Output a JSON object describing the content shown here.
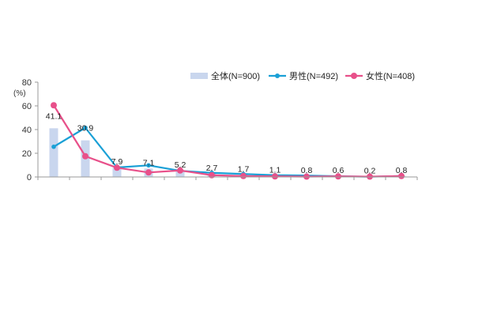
{
  "chart_data": {
    "type": "bar",
    "categories": [
      "",
      "",
      "",
      "",
      "",
      "",
      "",
      "",
      "",
      "",
      "",
      ""
    ],
    "series": [
      {
        "name": "全体(N=900)",
        "type": "bar",
        "color": "#c9d6ee",
        "values": [
          41.1,
          30.9,
          7.9,
          7.1,
          5.2,
          2.7,
          1.7,
          1.1,
          0.8,
          0.6,
          0.2,
          0.8
        ]
      },
      {
        "name": "男性(N=492)",
        "type": "line",
        "color": "#1aa0d6",
        "values": [
          25.5,
          41.5,
          8.0,
          9.8,
          5.2,
          3.5,
          2.5,
          1.5,
          1.2,
          0.6,
          0.2,
          0.8
        ]
      },
      {
        "name": "女性(N=408)",
        "type": "line",
        "color": "#e8508a",
        "values": [
          60.5,
          17.5,
          7.8,
          3.8,
          5.5,
          1.5,
          0.8,
          0.5,
          0.3,
          0.5,
          0.3,
          0.8
        ]
      }
    ],
    "data_labels": [
      "41.1",
      "30.9",
      "7.9",
      "7.1",
      "5.2",
      "2.7",
      "1.7",
      "1.1",
      "0.8",
      "0.6",
      "0.2",
      "0.8"
    ],
    "y_ticks": [
      "0",
      "20",
      "40",
      "60",
      "80"
    ],
    "y_unit": "(%)",
    "ylim": [
      0,
      80
    ],
    "grid": false,
    "legend_position": "top-right"
  }
}
